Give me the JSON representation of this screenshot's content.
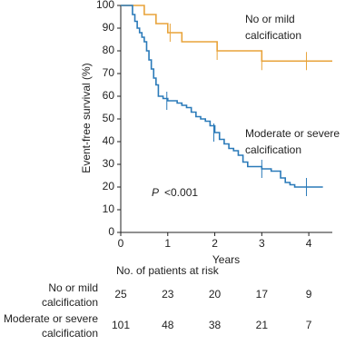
{
  "chart_data": {
    "type": "km",
    "y_label": "Event-free survival (%)",
    "x_label": "Years",
    "xlim": [
      0,
      4.5
    ],
    "ylim": [
      0,
      100
    ],
    "xticks": [
      0,
      1,
      2,
      3,
      4
    ],
    "yticks": [
      0,
      10,
      20,
      30,
      40,
      50,
      60,
      70,
      80,
      90,
      100
    ],
    "series": [
      {
        "name": [
          "No or mild",
          "calcification"
        ],
        "color": "#e8a33a",
        "x": [
          0,
          0.5,
          0.75,
          1.0,
          1.3,
          2.05,
          3.0,
          4.5
        ],
        "values": [
          100,
          96,
          92,
          88,
          84,
          80,
          75.5,
          75.5
        ],
        "censored_x": [
          1.05,
          2.05,
          3.0,
          3.95
        ],
        "censored_y": [
          88,
          80,
          75.5,
          75.5
        ]
      },
      {
        "name": [
          "Moderate or severe",
          "calcification"
        ],
        "color": "#2a7ab9",
        "x": [
          0,
          0.25,
          0.3,
          0.35,
          0.4,
          0.45,
          0.5,
          0.55,
          0.6,
          0.65,
          0.7,
          0.75,
          0.8,
          0.9,
          1.0,
          1.2,
          1.3,
          1.4,
          1.5,
          1.6,
          1.7,
          1.8,
          1.9,
          2.0,
          2.1,
          2.2,
          2.3,
          2.4,
          2.5,
          2.6,
          2.7,
          3.0,
          3.2,
          3.4,
          3.5,
          3.6,
          3.7,
          4.3
        ],
        "values": [
          100,
          96,
          93,
          90,
          88,
          86,
          84,
          80,
          76,
          72,
          68,
          65,
          60,
          59,
          58,
          57,
          56,
          55,
          53,
          51,
          50,
          49,
          47,
          44,
          41,
          39,
          37,
          36,
          34,
          31,
          29,
          28,
          27,
          24,
          22,
          21,
          20,
          20
        ],
        "censored_x": [
          0.98,
          1.98,
          3.0,
          3.95
        ],
        "censored_y": [
          58,
          44,
          28,
          20
        ]
      }
    ],
    "p_label": "P",
    "p_value": "<0.001",
    "risk_table": {
      "title": "No. of patients at risk",
      "rows": [
        {
          "label": [
            "No or mild",
            "calcification"
          ],
          "values": [
            25,
            23,
            20,
            17,
            9
          ]
        },
        {
          "label": [
            "Moderate or severe",
            "calcification"
          ],
          "values": [
            101,
            48,
            38,
            21,
            7
          ]
        }
      ]
    }
  }
}
